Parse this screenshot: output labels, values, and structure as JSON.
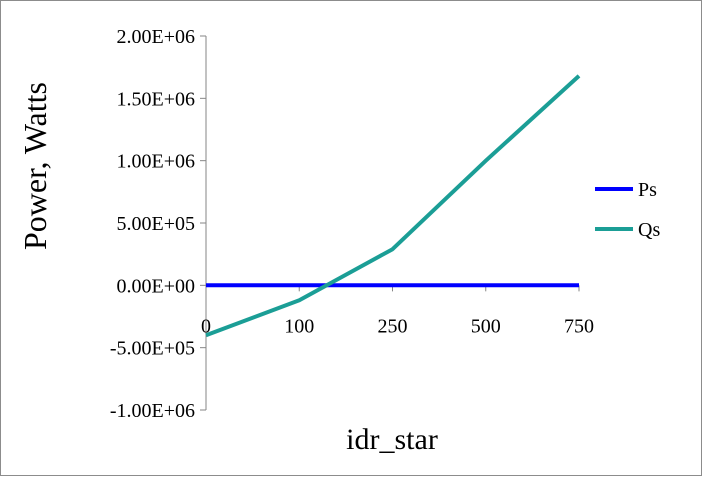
{
  "chart_data": {
    "type": "line",
    "title": "",
    "xlabel": "idr_star",
    "ylabel": "Power, Watts",
    "categories": [
      "0",
      "100",
      "250",
      "500",
      "750"
    ],
    "y_tick_labels": [
      "2.00E+06",
      "1.50E+06",
      "1.00E+06",
      "5.00E+05",
      "0.00E+00",
      "-5.00E+05",
      "-1.00E+06"
    ],
    "y_ticks": [
      2000000,
      1500000,
      1000000,
      500000,
      0,
      -500000,
      -1000000
    ],
    "ylim": [
      -1000000,
      2000000
    ],
    "grid": false,
    "legend_position": "right",
    "series": [
      {
        "name": "Ps",
        "color": "#0000ff",
        "values": [
          0,
          0,
          0,
          0,
          0
        ]
      },
      {
        "name": "Qs",
        "color": "#1b9e96",
        "values": [
          -400000,
          -120000,
          290000,
          1000000,
          1680000
        ]
      }
    ]
  }
}
